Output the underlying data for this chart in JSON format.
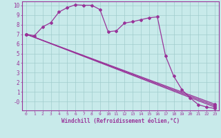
{
  "background_color": "#c8eaea",
  "line_color": "#993399",
  "grid_color": "#a0cccc",
  "xlabel": "Windchill (Refroidissement éolien,°C)",
  "xlabel_color": "#993399",
  "tick_color": "#993399",
  "ylim": [
    -0.9,
    10.4
  ],
  "xlim": [
    -0.5,
    23.5
  ],
  "ytick_vals": [
    0,
    1,
    2,
    3,
    4,
    5,
    6,
    7,
    8,
    9,
    10
  ],
  "ytick_labels": [
    "-0",
    "1",
    "2",
    "3",
    "4",
    "5",
    "6",
    "7",
    "8",
    "9",
    "10"
  ],
  "xtick_vals": [
    0,
    1,
    2,
    3,
    4,
    5,
    6,
    7,
    8,
    9,
    10,
    11,
    12,
    13,
    14,
    15,
    16,
    17,
    18,
    19,
    20,
    21,
    22,
    23
  ],
  "line1_x": [
    0,
    1,
    2,
    3,
    4,
    5,
    6,
    7,
    8,
    9,
    10,
    11,
    12,
    13,
    14,
    15,
    16,
    17,
    18,
    19,
    20,
    21,
    22,
    23
  ],
  "line1_y": [
    7.0,
    6.85,
    7.75,
    8.2,
    9.3,
    9.75,
    10.05,
    10.0,
    10.0,
    9.55,
    7.25,
    7.35,
    8.15,
    8.3,
    8.5,
    8.7,
    8.8,
    4.75,
    2.65,
    1.25,
    0.4,
    -0.3,
    -0.55,
    -0.7
  ],
  "line2_x": [
    0,
    23
  ],
  "line2_y": [
    7.0,
    -0.55
  ],
  "line3_x": [
    0,
    23
  ],
  "line3_y": [
    7.0,
    -0.4
  ],
  "line4_x": [
    0,
    23
  ],
  "line4_y": [
    7.0,
    -0.25
  ]
}
